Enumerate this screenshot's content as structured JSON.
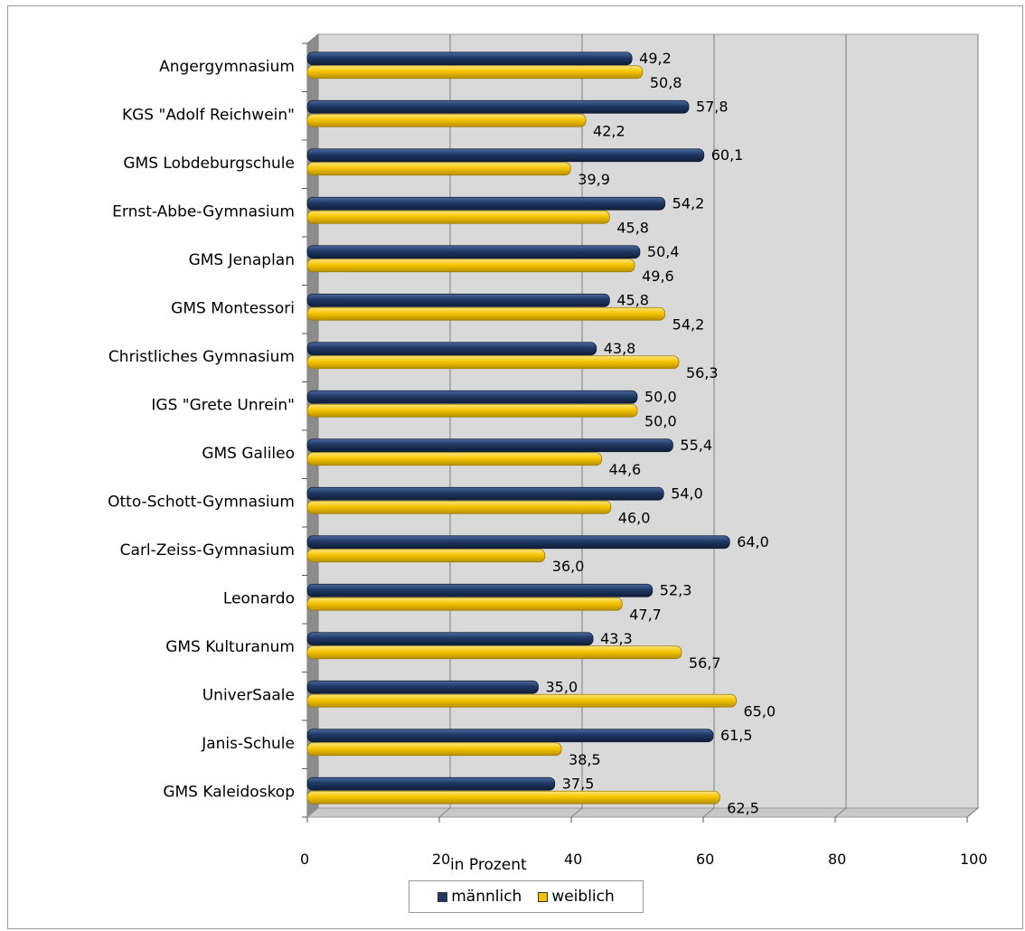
{
  "chart_data": {
    "type": "bar",
    "orientation": "horizontal",
    "categories": [
      "Angergymnasium",
      "KGS \"Adolf Reichwein\"",
      "GMS Lobdeburgschule",
      "Ernst-Abbe-Gymnasium",
      "GMS Jenaplan",
      "GMS Montessori",
      "Christliches Gymnasium",
      "IGS \"Grete Unrein\"",
      "GMS Galileo",
      "Otto-Schott-Gymnasium",
      "Carl-Zeiss-Gymnasium",
      "Leonardo",
      "GMS Kulturanum",
      "UniverSaale",
      "Janis-Schule",
      "GMS Kaleidoskop"
    ],
    "series": [
      {
        "name": "männlich",
        "color": "#1f3864",
        "values": [
          49.2,
          57.8,
          60.1,
          54.2,
          50.4,
          45.8,
          43.8,
          50.0,
          55.4,
          54.0,
          64.0,
          52.3,
          43.3,
          35.0,
          61.5,
          37.5
        ],
        "labels": [
          "49,2",
          "57,8",
          "60,1",
          "54,2",
          "50,4",
          "45,8",
          "43,8",
          "50,0",
          "55,4",
          "54,0",
          "64,0",
          "52,3",
          "43,3",
          "35,0",
          "61,5",
          "37,5"
        ]
      },
      {
        "name": "weiblich",
        "color": "#f2c200",
        "values": [
          50.8,
          42.2,
          39.9,
          45.8,
          49.6,
          54.2,
          56.3,
          50.0,
          44.6,
          46.0,
          36.0,
          47.7,
          56.7,
          65.0,
          38.5,
          62.5
        ],
        "labels": [
          "50,8",
          "42,2",
          "39,9",
          "45,8",
          "49,6",
          "54,2",
          "56,3",
          "50,0",
          "44,6",
          "46,0",
          "36,0",
          "47,7",
          "56,7",
          "65,0",
          "38,5",
          "62,5"
        ]
      }
    ],
    "xlabel": "in Prozent",
    "xlim": [
      0,
      100
    ],
    "xticks": [
      "0",
      "20",
      "40",
      "60",
      "80",
      "100"
    ],
    "grid": true,
    "legend_position": "bottom"
  },
  "legend": {
    "male_label": "männlich",
    "female_label": "weiblich"
  }
}
